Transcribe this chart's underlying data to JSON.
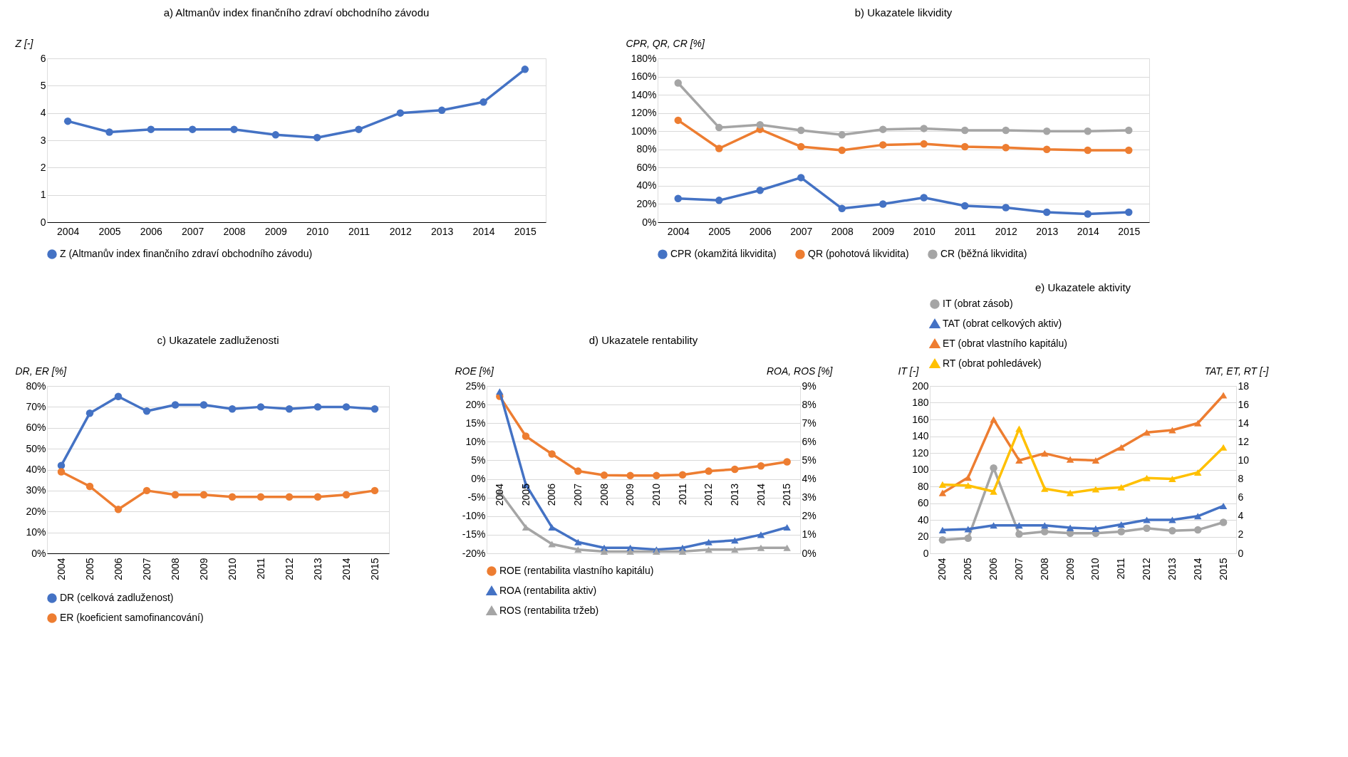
{
  "chart_data": [
    {
      "type": "line",
      "title": "a) Altmanův index finančního zdraví obchodního závodu",
      "ylabel": "Z [-]",
      "categories": [
        "2004",
        "2005",
        "2006",
        "2007",
        "2008",
        "2009",
        "2010",
        "2011",
        "2012",
        "2013",
        "2014",
        "2015"
      ],
      "series": [
        {
          "name": "Z (Altmanův index finančního zdraví obchodního závodu)",
          "color": "#4472c4",
          "values": [
            3.7,
            3.3,
            3.4,
            3.4,
            3.4,
            3.2,
            3.1,
            3.4,
            4.0,
            4.1,
            4.4,
            5.6
          ]
        }
      ],
      "ylim": [
        0,
        6
      ],
      "yticks": [
        0,
        1,
        2,
        3,
        4,
        5,
        6
      ],
      "grid": "y",
      "legend": "bottom",
      "marker": "circle"
    },
    {
      "type": "line",
      "title": "b) Ukazatele likvidity",
      "ylabel": "CPR, QR, CR [%]",
      "categories": [
        "2004",
        "2005",
        "2006",
        "2007",
        "2008",
        "2009",
        "2010",
        "2011",
        "2012",
        "2013",
        "2014",
        "2015"
      ],
      "series": [
        {
          "name": "CPR (okamžitá likvidita)",
          "color": "#4472c4",
          "values": [
            26,
            24,
            35,
            49,
            15,
            20,
            27,
            18,
            16,
            11,
            9,
            11
          ]
        },
        {
          "name": "QR (pohotová likvidita)",
          "color": "#ed7d31",
          "values": [
            112,
            81,
            102,
            83,
            79,
            85,
            86,
            83,
            82,
            80,
            79,
            79
          ]
        },
        {
          "name": "CR (běžná likvidita)",
          "color": "#a5a5a5",
          "values": [
            153,
            104,
            107,
            101,
            96,
            102,
            103,
            101,
            101,
            100,
            100,
            101
          ]
        }
      ],
      "ylim": [
        0,
        180
      ],
      "yticks": [
        {
          "value": 0,
          "label": "0%"
        },
        {
          "value": 20,
          "label": "20%"
        },
        {
          "value": 40,
          "label": "40%"
        },
        {
          "value": 60,
          "label": "60%"
        },
        {
          "value": 80,
          "label": "80%"
        },
        {
          "value": 100,
          "label": "100%"
        },
        {
          "value": 120,
          "label": "120%"
        },
        {
          "value": 140,
          "label": "140%"
        },
        {
          "value": 160,
          "label": "160%"
        },
        {
          "value": 180,
          "label": "180%"
        }
      ],
      "grid": "y",
      "legend": "bottom",
      "marker": "circle"
    },
    {
      "type": "line",
      "title": "c) Ukazatele zadluženosti",
      "ylabel": "DR, ER [%]",
      "categories": [
        "2004",
        "2005",
        "2006",
        "2007",
        "2008",
        "2009",
        "2010",
        "2011",
        "2012",
        "2013",
        "2014",
        "2015"
      ],
      "series": [
        {
          "name": "DR (celková zadluženost)",
          "color": "#4472c4",
          "values": [
            42,
            67,
            75,
            68,
            71,
            71,
            69,
            70,
            69,
            70,
            70,
            69
          ]
        },
        {
          "name": "ER (koeficient samofinancování)",
          "color": "#ed7d31",
          "values": [
            39,
            32,
            21,
            30,
            28,
            28,
            27,
            27,
            27,
            27,
            28,
            30
          ]
        }
      ],
      "ylim": [
        0,
        80
      ],
      "yticks": [
        {
          "value": 0,
          "label": "0%"
        },
        {
          "value": 10,
          "label": "10%"
        },
        {
          "value": 20,
          "label": "20%"
        },
        {
          "value": 30,
          "label": "30%"
        },
        {
          "value": 40,
          "label": "40%"
        },
        {
          "value": 50,
          "label": "50%"
        },
        {
          "value": 60,
          "label": "60%"
        },
        {
          "value": 70,
          "label": "70%"
        },
        {
          "value": 80,
          "label": "80%"
        }
      ],
      "grid": "y",
      "legend": "bottom",
      "marker": "circle"
    },
    {
      "type": "line",
      "title": "d) Ukazatele rentability",
      "ylabel": "ROE [%]",
      "y2label": "ROA, ROS [%]",
      "categories": [
        "2004",
        "2005",
        "2006",
        "2007",
        "2008",
        "2009",
        "2010",
        "2011",
        "2012",
        "2013",
        "2014",
        "2015"
      ],
      "series": [
        {
          "name": "ROE (rentabilita vlastního kapitálu)",
          "color": "#ed7d31",
          "marker": "circle",
          "values": [
            22.2,
            11.5,
            6.7,
            2.1,
            1.0,
            0.9,
            0.9,
            1.1,
            2.1,
            2.6,
            3.5,
            4.6
          ]
        },
        {
          "name": "ROA (rentabilita aktiv)",
          "color": "#4472c4",
          "marker": "triangle",
          "axis": "y2",
          "values": [
            8.7,
            3.7,
            1.4,
            0.6,
            0.3,
            0.3,
            0.2,
            0.3,
            0.6,
            0.7,
            1.0,
            1.4
          ]
        },
        {
          "name": "ROS (rentabilita tržeb)",
          "color": "#a5a5a5",
          "marker": "triangle",
          "axis": "y2",
          "values": [
            3.3,
            1.4,
            0.5,
            0.2,
            0.1,
            0.1,
            0.1,
            0.1,
            0.2,
            0.2,
            0.3,
            0.3
          ]
        }
      ],
      "ylim": [
        -20,
        25
      ],
      "yticks": [
        {
          "value": -20,
          "label": "-20%"
        },
        {
          "value": -15,
          "label": "-15%"
        },
        {
          "value": -10,
          "label": "-10%"
        },
        {
          "value": -5,
          "label": "-5%"
        },
        {
          "value": 0,
          "label": "0%"
        },
        {
          "value": 5,
          "label": "5%"
        },
        {
          "value": 10,
          "label": "10%"
        },
        {
          "value": 15,
          "label": "15%"
        },
        {
          "value": 20,
          "label": "20%"
        },
        {
          "value": 25,
          "label": "25%"
        }
      ],
      "y2lim": [
        0,
        9
      ],
      "y2ticks": [
        {
          "value": 0,
          "label": "0%"
        },
        {
          "value": 1,
          "label": "1%"
        },
        {
          "value": 2,
          "label": "2%"
        },
        {
          "value": 3,
          "label": "3%"
        },
        {
          "value": 4,
          "label": "4%"
        },
        {
          "value": 5,
          "label": "5%"
        },
        {
          "value": 6,
          "label": "6%"
        },
        {
          "value": 7,
          "label": "7%"
        },
        {
          "value": 8,
          "label": "8%"
        },
        {
          "value": 9,
          "label": "9%"
        }
      ],
      "grid": "y",
      "legend": "bottom"
    },
    {
      "type": "line",
      "title": "e) Ukazatele aktivity",
      "ylabel": "IT [-]",
      "y2label": "TAT, ET, RT [-]",
      "categories": [
        "2004",
        "2005",
        "2006",
        "2007",
        "2008",
        "2009",
        "2010",
        "2011",
        "2012",
        "2013",
        "2014",
        "2015"
      ],
      "series": [
        {
          "name": "IT (obrat zásob)",
          "color": "#a5a5a5",
          "marker": "circle",
          "values": [
            16,
            18,
            102,
            23,
            26,
            24,
            24,
            26,
            30,
            27,
            28,
            37
          ]
        },
        {
          "name": "TAT (obrat celkových aktiv)",
          "color": "#4472c4",
          "marker": "triangle",
          "axis": "y2",
          "values": [
            2.5,
            2.6,
            3.0,
            3.0,
            3.0,
            2.75,
            2.65,
            3.1,
            3.6,
            3.6,
            4.0,
            5.1
          ]
        },
        {
          "name": "ET (obrat vlastního kapitálu)",
          "color": "#ed7d31",
          "marker": "triangle",
          "axis": "y2",
          "values": [
            6.5,
            8.15,
            14.4,
            10.0,
            10.75,
            10.1,
            10.0,
            11.4,
            13.0,
            13.25,
            14.0,
            17.0
          ]
        },
        {
          "name": "RT (obrat pohledávek)",
          "color": "#ffc000",
          "marker": "triangle",
          "axis": "y2",
          "values": [
            7.4,
            7.3,
            6.65,
            13.4,
            6.95,
            6.5,
            6.9,
            7.1,
            8.1,
            8.0,
            8.7,
            11.4
          ]
        }
      ],
      "ylim": [
        0,
        200
      ],
      "yticks": [
        0,
        20,
        40,
        60,
        80,
        100,
        120,
        140,
        160,
        180,
        200
      ],
      "y2lim": [
        0,
        18
      ],
      "y2ticks": [
        0,
        2,
        4,
        6,
        8,
        10,
        12,
        14,
        16,
        18
      ],
      "grid": "y",
      "legend": "top"
    }
  ]
}
